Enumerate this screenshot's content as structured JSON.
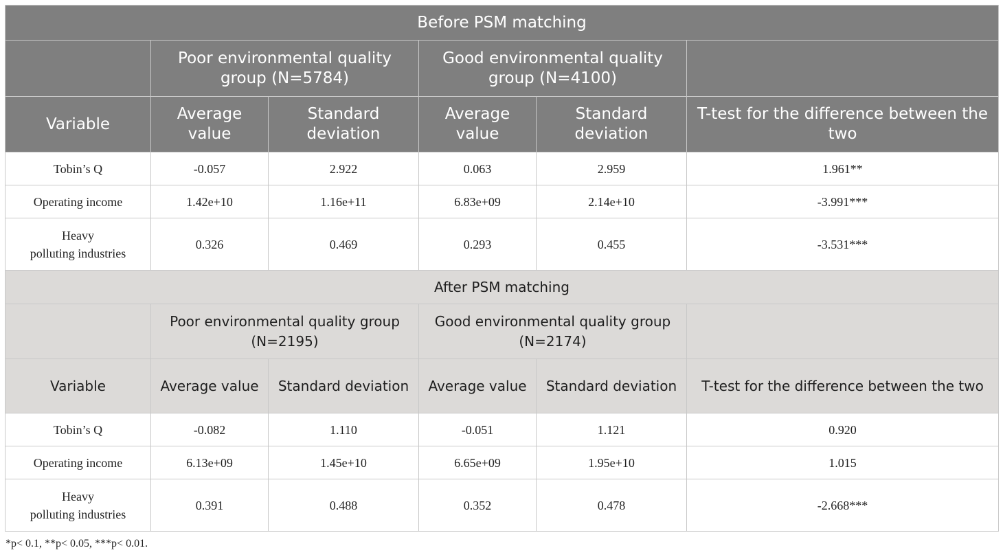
{
  "sections": {
    "before": {
      "title": "Before PSM matching",
      "poor_group": "Poor environmental quality group (N=5784)",
      "good_group": "Good environmental quality group (N=4100)",
      "rows": [
        [
          "Tobin’s Q",
          "-0.057",
          "2.922",
          "0.063",
          "2.959",
          "1.961**"
        ],
        [
          "Operating income",
          "1.42e+10",
          "1.16e+11",
          "6.83e+09",
          "2.14e+10",
          "-3.991***"
        ],
        [
          "Heavy\npolluting industries",
          "0.326",
          "0.469",
          "0.293",
          "0.455",
          "-3.531***"
        ]
      ]
    },
    "after": {
      "title": "After PSM matching",
      "poor_group": "Poor environmental quality group (N=2195)",
      "good_group": "Good environmental quality group (N=2174)",
      "rows": [
        [
          "Tobin’s Q",
          "-0.082",
          "1.110",
          "-0.051",
          "1.121",
          "0.920"
        ],
        [
          "Operating income",
          "6.13e+09",
          "1.45e+10",
          "6.65e+09",
          "1.95e+10",
          "1.015"
        ],
        [
          "Heavy\npolluting industries",
          "0.391",
          "0.488",
          "0.352",
          "0.478",
          "-2.668***"
        ]
      ]
    }
  },
  "columns": {
    "variable": "Variable",
    "average": "Average value",
    "std": "Standard deviation",
    "ttest": "T-test for the difference between the two"
  },
  "footnote": "*p< 0.1, **p< 0.05, ***p< 0.01."
}
